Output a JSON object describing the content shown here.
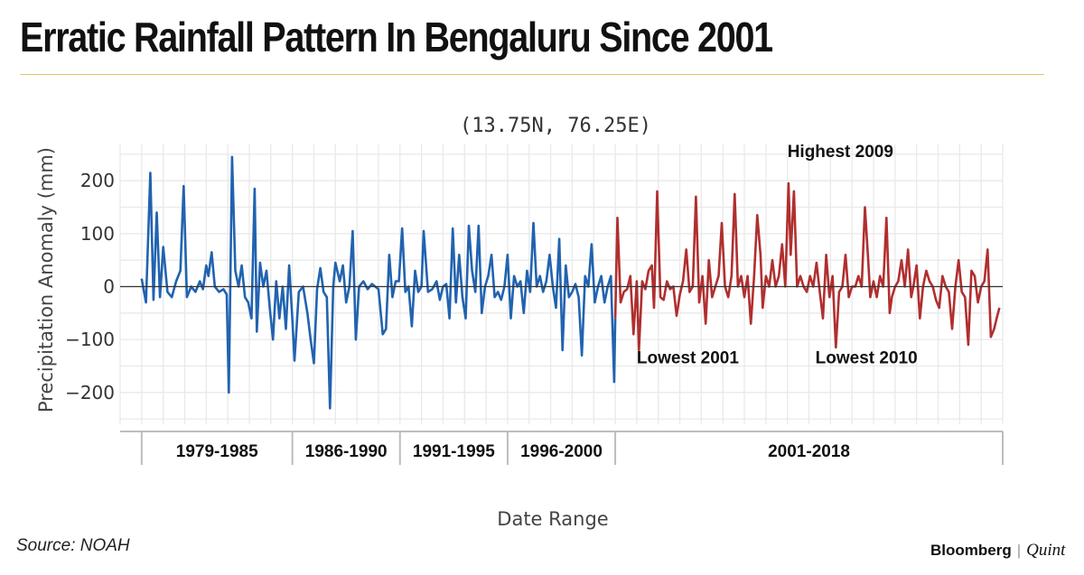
{
  "header": {
    "title": "Erratic Rainfall Pattern In Bengaluru Since 2001"
  },
  "footer": {
    "source": "Source: NOAH",
    "brand_left": "Bloomberg",
    "brand_sep": "|",
    "brand_right": "Quint"
  },
  "chart_data": {
    "type": "line",
    "subtitle": "(13.75N, 76.25E)",
    "xlabel": "Date Range",
    "ylabel": "Precipitation Anomaly (mm)",
    "ylim": [
      -260,
      260
    ],
    "xlim": [
      1978.0,
      2019.0
    ],
    "yticks": [
      {
        "value": 200,
        "label": "200"
      },
      {
        "value": 100,
        "label": "100"
      },
      {
        "value": 0,
        "label": "0"
      },
      {
        "value": -100,
        "label": "−100"
      },
      {
        "value": -200,
        "label": "−200"
      }
    ],
    "grid": true,
    "ranges": [
      {
        "label": "1979-1985",
        "start": 1979,
        "end": 1986
      },
      {
        "label": "1986-1990",
        "start": 1986,
        "end": 1991
      },
      {
        "label": "1991-1995",
        "start": 1991,
        "end": 1996
      },
      {
        "label": "1996-2000",
        "start": 1996,
        "end": 2001
      },
      {
        "label": "2001-2018",
        "start": 2001,
        "end": 2019
      }
    ],
    "annotations": [
      {
        "text": "Highest 2009",
        "x": 2009,
        "y": 245
      },
      {
        "text": "Lowest 2001",
        "x": 2002,
        "y": -145
      },
      {
        "text": "Lowest 2010",
        "x": 2010.3,
        "y": -145
      }
    ],
    "series": [
      {
        "color": "#2163b0",
        "points": [
          [
            1979.0,
            15
          ],
          [
            1979.2,
            -30
          ],
          [
            1979.4,
            215
          ],
          [
            1979.55,
            -25
          ],
          [
            1979.7,
            140
          ],
          [
            1979.85,
            -20
          ],
          [
            1980.0,
            75
          ],
          [
            1980.2,
            -10
          ],
          [
            1980.4,
            -20
          ],
          [
            1980.6,
            10
          ],
          [
            1980.8,
            30
          ],
          [
            1980.95,
            190
          ],
          [
            1981.1,
            -20
          ],
          [
            1981.3,
            0
          ],
          [
            1981.5,
            -10
          ],
          [
            1981.7,
            10
          ],
          [
            1981.85,
            -5
          ],
          [
            1982.0,
            40
          ],
          [
            1982.1,
            20
          ],
          [
            1982.25,
            65
          ],
          [
            1982.4,
            0
          ],
          [
            1982.6,
            -10
          ],
          [
            1982.8,
            -5
          ],
          [
            1982.95,
            -15
          ],
          [
            1983.05,
            -200
          ],
          [
            1983.2,
            245
          ],
          [
            1983.35,
            30
          ],
          [
            1983.5,
            0
          ],
          [
            1983.65,
            40
          ],
          [
            1983.8,
            -20
          ],
          [
            1983.95,
            -30
          ],
          [
            1984.1,
            -60
          ],
          [
            1984.25,
            185
          ],
          [
            1984.35,
            -85
          ],
          [
            1984.5,
            45
          ],
          [
            1984.65,
            0
          ],
          [
            1984.8,
            30
          ],
          [
            1984.95,
            -40
          ],
          [
            1985.1,
            -100
          ],
          [
            1985.25,
            10
          ],
          [
            1985.4,
            -60
          ],
          [
            1985.55,
            0
          ],
          [
            1985.7,
            -80
          ],
          [
            1985.85,
            40
          ],
          [
            1986.0,
            -60
          ],
          [
            1986.1,
            -140
          ],
          [
            1986.3,
            -10
          ],
          [
            1986.5,
            0
          ],
          [
            1986.7,
            -50
          ],
          [
            1986.85,
            -100
          ],
          [
            1987.0,
            -145
          ],
          [
            1987.15,
            -5
          ],
          [
            1987.3,
            35
          ],
          [
            1987.45,
            -10
          ],
          [
            1987.6,
            -20
          ],
          [
            1987.75,
            -230
          ],
          [
            1987.9,
            0
          ],
          [
            1988.0,
            45
          ],
          [
            1988.2,
            10
          ],
          [
            1988.35,
            40
          ],
          [
            1988.5,
            -30
          ],
          [
            1988.65,
            0
          ],
          [
            1988.8,
            105
          ],
          [
            1988.95,
            -100
          ],
          [
            1989.1,
            0
          ],
          [
            1989.3,
            10
          ],
          [
            1989.5,
            -5
          ],
          [
            1989.7,
            5
          ],
          [
            1989.85,
            0
          ],
          [
            1990.0,
            -5
          ],
          [
            1990.2,
            -90
          ],
          [
            1990.35,
            -80
          ],
          [
            1990.5,
            60
          ],
          [
            1990.65,
            -20
          ],
          [
            1990.8,
            10
          ],
          [
            1990.95,
            10
          ],
          [
            1991.1,
            110
          ],
          [
            1991.25,
            -10
          ],
          [
            1991.4,
            0
          ],
          [
            1991.55,
            -75
          ],
          [
            1991.7,
            30
          ],
          [
            1991.85,
            -10
          ],
          [
            1992.0,
            0
          ],
          [
            1992.1,
            105
          ],
          [
            1992.3,
            -10
          ],
          [
            1992.5,
            -5
          ],
          [
            1992.7,
            10
          ],
          [
            1992.85,
            -25
          ],
          [
            1993.0,
            0
          ],
          [
            1993.15,
            5
          ],
          [
            1993.3,
            -60
          ],
          [
            1993.45,
            110
          ],
          [
            1993.6,
            -30
          ],
          [
            1993.75,
            60
          ],
          [
            1993.9,
            -20
          ],
          [
            1994.05,
            -60
          ],
          [
            1994.2,
            115
          ],
          [
            1994.35,
            30
          ],
          [
            1994.5,
            -10
          ],
          [
            1994.65,
            115
          ],
          [
            1994.8,
            -50
          ],
          [
            1994.95,
            0
          ],
          [
            1995.1,
            20
          ],
          [
            1995.25,
            60
          ],
          [
            1995.4,
            -20
          ],
          [
            1995.55,
            -10
          ],
          [
            1995.7,
            -25
          ],
          [
            1995.85,
            0
          ],
          [
            1996.0,
            60
          ],
          [
            1996.15,
            -60
          ],
          [
            1996.3,
            20
          ],
          [
            1996.45,
            0
          ],
          [
            1996.6,
            10
          ],
          [
            1996.75,
            -50
          ],
          [
            1996.9,
            30
          ],
          [
            1997.05,
            -10
          ],
          [
            1997.2,
            120
          ],
          [
            1997.35,
            0
          ],
          [
            1997.5,
            20
          ],
          [
            1997.65,
            -10
          ],
          [
            1997.8,
            10
          ],
          [
            1997.95,
            60
          ],
          [
            1998.1,
            0
          ],
          [
            1998.25,
            -40
          ],
          [
            1998.4,
            90
          ],
          [
            1998.55,
            -120
          ],
          [
            1998.7,
            40
          ],
          [
            1998.85,
            -20
          ],
          [
            1999.0,
            -10
          ],
          [
            1999.15,
            5
          ],
          [
            1999.3,
            -20
          ],
          [
            1999.45,
            -130
          ],
          [
            1999.6,
            20
          ],
          [
            1999.75,
            0
          ],
          [
            1999.9,
            80
          ],
          [
            2000.05,
            -30
          ],
          [
            2000.2,
            0
          ],
          [
            2000.35,
            20
          ],
          [
            2000.5,
            -30
          ],
          [
            2000.65,
            0
          ],
          [
            2000.8,
            20
          ],
          [
            2000.95,
            -180
          ],
          [
            2001.0,
            -60
          ]
        ]
      },
      {
        "color": "#b02f2f",
        "points": [
          [
            2001.0,
            -60
          ],
          [
            2001.1,
            130
          ],
          [
            2001.25,
            -30
          ],
          [
            2001.4,
            -10
          ],
          [
            2001.55,
            -5
          ],
          [
            2001.7,
            20
          ],
          [
            2001.85,
            -90
          ],
          [
            2002.0,
            10
          ],
          [
            2002.1,
            -120
          ],
          [
            2002.25,
            10
          ],
          [
            2002.4,
            -5
          ],
          [
            2002.55,
            30
          ],
          [
            2002.7,
            40
          ],
          [
            2002.8,
            -40
          ],
          [
            2002.95,
            180
          ],
          [
            2003.1,
            -20
          ],
          [
            2003.25,
            -25
          ],
          [
            2003.4,
            10
          ],
          [
            2003.55,
            -5
          ],
          [
            2003.7,
            0
          ],
          [
            2003.85,
            -55
          ],
          [
            2004.0,
            -15
          ],
          [
            2004.15,
            10
          ],
          [
            2004.3,
            70
          ],
          [
            2004.45,
            -10
          ],
          [
            2004.6,
            0
          ],
          [
            2004.75,
            170
          ],
          [
            2004.9,
            -30
          ],
          [
            2005.05,
            20
          ],
          [
            2005.2,
            -70
          ],
          [
            2005.35,
            50
          ],
          [
            2005.5,
            -20
          ],
          [
            2005.65,
            0
          ],
          [
            2005.8,
            20
          ],
          [
            2005.95,
            120
          ],
          [
            2006.1,
            0
          ],
          [
            2006.25,
            -20
          ],
          [
            2006.4,
            20
          ],
          [
            2006.55,
            175
          ],
          [
            2006.7,
            0
          ],
          [
            2006.85,
            20
          ],
          [
            2007.0,
            -20
          ],
          [
            2007.15,
            20
          ],
          [
            2007.3,
            -70
          ],
          [
            2007.45,
            20
          ],
          [
            2007.6,
            135
          ],
          [
            2007.75,
            60
          ],
          [
            2007.85,
            -40
          ],
          [
            2008.0,
            20
          ],
          [
            2008.15,
            0
          ],
          [
            2008.3,
            50
          ],
          [
            2008.45,
            0
          ],
          [
            2008.6,
            20
          ],
          [
            2008.75,
            80
          ],
          [
            2008.9,
            0
          ],
          [
            2009.05,
            195
          ],
          [
            2009.15,
            60
          ],
          [
            2009.3,
            180
          ],
          [
            2009.45,
            0
          ],
          [
            2009.6,
            20
          ],
          [
            2009.75,
            0
          ],
          [
            2009.9,
            -10
          ],
          [
            2010.05,
            20
          ],
          [
            2010.2,
            0
          ],
          [
            2010.35,
            45
          ],
          [
            2010.5,
            -10
          ],
          [
            2010.65,
            -60
          ],
          [
            2010.8,
            60
          ],
          [
            2010.95,
            -20
          ],
          [
            2011.1,
            20
          ],
          [
            2011.25,
            -115
          ],
          [
            2011.4,
            -10
          ],
          [
            2011.55,
            0
          ],
          [
            2011.7,
            60
          ],
          [
            2011.85,
            -20
          ],
          [
            2012.0,
            0
          ],
          [
            2012.15,
            0
          ],
          [
            2012.3,
            20
          ],
          [
            2012.45,
            0
          ],
          [
            2012.6,
            150
          ],
          [
            2012.75,
            50
          ],
          [
            2012.85,
            -20
          ],
          [
            2013.0,
            10
          ],
          [
            2013.15,
            -20
          ],
          [
            2013.3,
            20
          ],
          [
            2013.45,
            0
          ],
          [
            2013.6,
            130
          ],
          [
            2013.75,
            -50
          ],
          [
            2013.85,
            -20
          ],
          [
            2014.0,
            0
          ],
          [
            2014.15,
            10
          ],
          [
            2014.3,
            50
          ],
          [
            2014.45,
            0
          ],
          [
            2014.6,
            70
          ],
          [
            2014.75,
            -20
          ],
          [
            2014.85,
            0
          ],
          [
            2015.0,
            40
          ],
          [
            2015.15,
            -60
          ],
          [
            2015.3,
            0
          ],
          [
            2015.45,
            30
          ],
          [
            2015.6,
            10
          ],
          [
            2015.75,
            0
          ],
          [
            2015.9,
            -25
          ],
          [
            2016.05,
            -40
          ],
          [
            2016.2,
            20
          ],
          [
            2016.35,
            0
          ],
          [
            2016.5,
            -10
          ],
          [
            2016.65,
            -80
          ],
          [
            2016.8,
            0
          ],
          [
            2016.95,
            50
          ],
          [
            2017.1,
            -10
          ],
          [
            2017.25,
            -20
          ],
          [
            2017.4,
            -110
          ],
          [
            2017.55,
            30
          ],
          [
            2017.7,
            20
          ],
          [
            2017.85,
            -30
          ],
          [
            2018.0,
            0
          ],
          [
            2018.15,
            10
          ],
          [
            2018.3,
            70
          ],
          [
            2018.45,
            -95
          ],
          [
            2018.6,
            -80
          ],
          [
            2018.75,
            -55
          ],
          [
            2018.85,
            -40
          ]
        ]
      }
    ]
  }
}
